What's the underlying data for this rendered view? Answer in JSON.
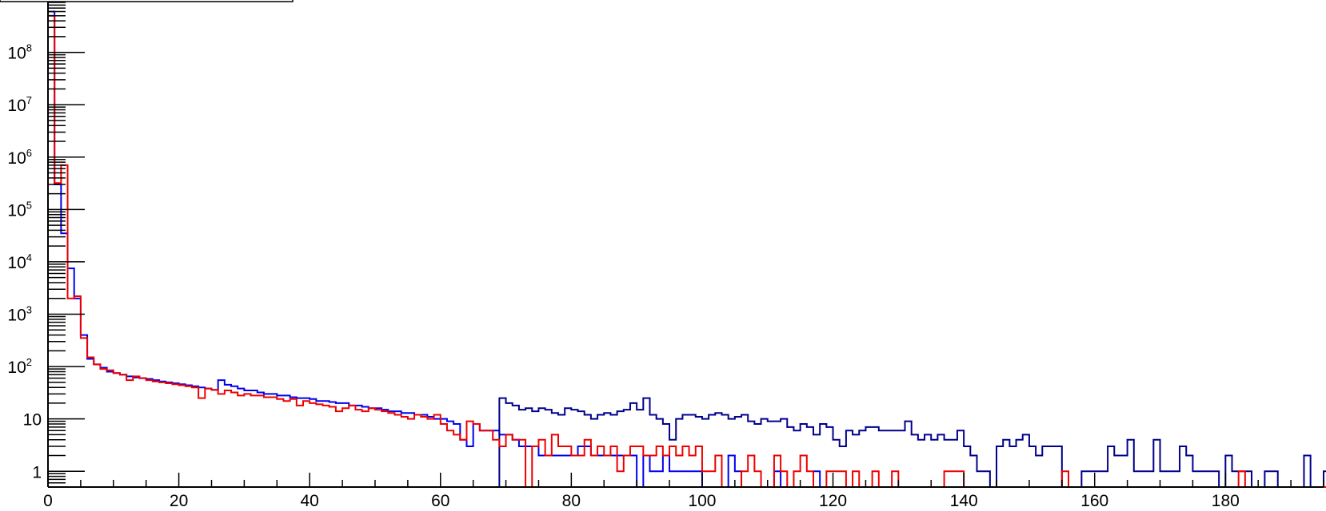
{
  "chart_data": {
    "type": "step",
    "title": "",
    "xlabel": "",
    "ylabel": "",
    "xlim": [
      0,
      195
    ],
    "ylim": [
      0.5,
      1000000000
    ],
    "yscale": "log",
    "grid": false,
    "legend": "none",
    "x_tick_labels": [
      "0",
      "20",
      "40",
      "60",
      "80",
      "100",
      "120",
      "140",
      "160",
      "180"
    ],
    "y_tick_labels": [
      {
        "base": "1",
        "exp": ""
      },
      {
        "base": "10",
        "exp": ""
      },
      {
        "base": "10",
        "exp": "2"
      },
      {
        "base": "10",
        "exp": "3"
      },
      {
        "base": "10",
        "exp": "4"
      },
      {
        "base": "10",
        "exp": "5"
      },
      {
        "base": "10",
        "exp": "6"
      },
      {
        "base": "10",
        "exp": "7"
      },
      {
        "base": "10",
        "exp": "8"
      }
    ],
    "bin_width": 1,
    "series": [
      {
        "color": "#0000ee",
        "values": [
          600000000,
          300000,
          35000,
          7500,
          2000,
          400,
          140,
          110,
          95,
          80,
          75,
          70,
          65,
          62,
          60,
          58,
          55,
          52,
          50,
          48,
          46,
          44,
          42,
          40,
          38,
          36,
          55,
          45,
          42,
          38,
          35,
          35,
          32,
          30,
          30,
          28,
          28,
          26,
          25,
          25,
          24,
          22,
          22,
          21,
          20,
          20,
          18,
          18,
          17,
          16,
          16,
          15,
          14,
          14,
          13,
          13,
          12,
          12,
          11,
          10,
          10,
          9,
          8,
          4,
          3,
          8,
          6,
          6,
          6,
          5,
          5,
          4,
          3,
          3,
          3,
          2,
          2,
          2,
          2,
          2,
          2,
          3,
          3,
          2,
          2,
          2,
          2,
          2,
          2,
          2,
          0,
          2,
          1,
          1,
          2,
          1,
          1,
          1,
          1,
          1,
          0,
          0,
          0,
          0,
          2,
          1,
          0,
          0,
          0,
          0,
          0,
          1,
          0,
          0,
          0,
          0,
          0,
          1,
          0,
          0,
          0,
          0,
          0,
          0,
          0,
          0,
          0,
          0,
          0,
          0,
          0,
          0,
          0,
          0,
          0,
          0,
          0,
          0,
          0,
          0,
          0,
          0,
          0,
          0,
          0,
          0,
          0,
          0,
          0,
          0,
          0,
          0,
          0,
          0,
          0,
          0,
          0,
          0,
          0,
          0,
          0,
          0,
          0,
          0,
          0,
          0,
          0,
          0,
          0,
          0,
          0,
          0,
          0,
          0,
          0,
          0,
          0,
          0,
          0,
          0,
          0,
          0,
          0,
          0,
          0,
          0,
          0,
          0,
          0,
          0,
          0,
          0,
          0,
          0,
          0,
          0,
          0,
          0,
          0
        ]
      },
      {
        "color": "#00008b",
        "values": [
          0,
          0,
          0,
          0,
          0,
          0,
          0,
          0,
          0,
          0,
          0,
          0,
          0,
          0,
          0,
          0,
          0,
          0,
          0,
          0,
          0,
          0,
          0,
          0,
          0,
          0,
          0,
          0,
          0,
          0,
          0,
          0,
          0,
          0,
          0,
          0,
          0,
          0,
          0,
          0,
          0,
          0,
          0,
          0,
          0,
          0,
          0,
          0,
          0,
          0,
          0,
          0,
          0,
          0,
          0,
          0,
          0,
          0,
          0,
          0,
          0,
          0,
          0,
          0,
          0,
          0,
          0,
          0,
          0,
          25,
          20,
          18,
          15,
          16,
          14,
          16,
          15,
          13,
          12,
          16,
          15,
          14,
          12,
          10,
          12,
          13,
          12,
          14,
          15,
          20,
          15,
          25,
          12,
          10,
          8,
          4,
          10,
          12,
          12,
          11,
          10,
          12,
          13,
          12,
          10,
          11,
          12,
          9,
          8,
          10,
          9,
          9,
          10,
          7,
          6,
          8,
          7,
          5,
          8,
          7,
          4,
          3,
          6,
          5,
          6,
          7,
          7,
          6,
          6,
          6,
          6,
          9,
          5,
          4,
          5,
          4,
          5,
          4,
          4,
          6,
          3,
          2,
          1,
          1,
          0,
          3,
          4,
          3,
          4,
          5,
          3,
          2,
          3,
          3,
          3,
          0,
          0,
          0,
          1,
          1,
          1,
          1,
          3,
          2,
          2,
          4,
          1,
          1,
          1,
          4,
          1,
          1,
          1,
          3,
          2,
          1,
          1,
          1,
          1,
          0,
          2,
          1,
          1,
          1,
          0,
          0,
          1,
          1,
          0,
          0,
          0,
          0,
          2,
          0,
          0,
          1,
          0,
          0,
          0
        ]
      },
      {
        "color": "#ee0000",
        "values": [
          500000000,
          320000,
          700000,
          2000,
          2200,
          350,
          150,
          110,
          90,
          85,
          75,
          70,
          55,
          65,
          60,
          55,
          52,
          50,
          48,
          46,
          44,
          42,
          40,
          25,
          38,
          36,
          30,
          35,
          32,
          28,
          30,
          28,
          28,
          26,
          26,
          24,
          22,
          24,
          18,
          22,
          20,
          19,
          18,
          17,
          14,
          16,
          18,
          15,
          14,
          16,
          15,
          14,
          13,
          12,
          11,
          10,
          12,
          11,
          10,
          12,
          8,
          6,
          5,
          4,
          9,
          8,
          6,
          6,
          4,
          3,
          5,
          4,
          4,
          0,
          3,
          4,
          2,
          5,
          3,
          3,
          2,
          2,
          4,
          2,
          3,
          2,
          3,
          1,
          2,
          3,
          3,
          2,
          2,
          3,
          2,
          3,
          2,
          3,
          2,
          3,
          1,
          1,
          2,
          0,
          0,
          0,
          1,
          2,
          1,
          0,
          0,
          2,
          1,
          0,
          1,
          2,
          1,
          0,
          0,
          1,
          1,
          1,
          0,
          1,
          0,
          0,
          1,
          0,
          0,
          1,
          0,
          0,
          0,
          0,
          0,
          0,
          0,
          1,
          1,
          1,
          0,
          0,
          0,
          0,
          0,
          0,
          0,
          0,
          0,
          0,
          0,
          0,
          0,
          0,
          0,
          1,
          0,
          0,
          0,
          0,
          0,
          0,
          0,
          0,
          0,
          0,
          0,
          0,
          0,
          0,
          0,
          0,
          0,
          0,
          0,
          0,
          0,
          0,
          0,
          0,
          0,
          0,
          1,
          0,
          0,
          0,
          0,
          0,
          0,
          0,
          0,
          0,
          0,
          0,
          0,
          0,
          0,
          0
        ]
      }
    ]
  }
}
